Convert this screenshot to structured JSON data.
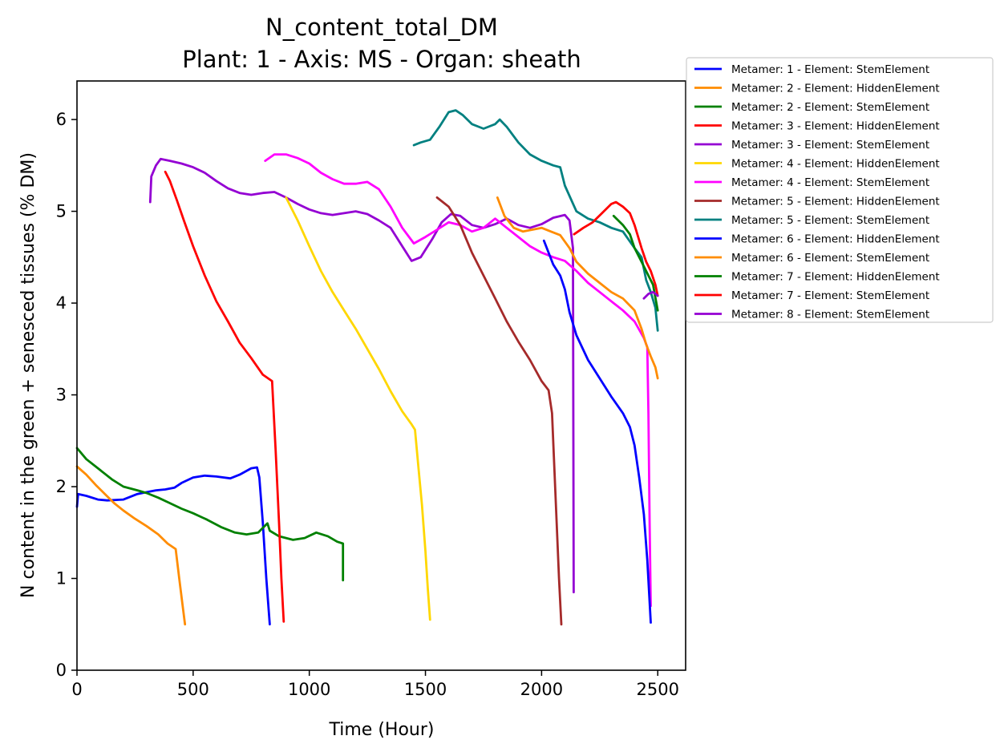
{
  "chart_data": {
    "type": "line",
    "title": "N_content_total_DM",
    "subtitle": "Plant: 1 - Axis: MS - Organ: sheath",
    "xlabel": "Time (Hour)",
    "ylabel": "N content in the green + senesced tissues (% DM)",
    "xlim": [
      0,
      2620
    ],
    "ylim": [
      0,
      6.42
    ],
    "xticks": [
      0,
      500,
      1000,
      1500,
      2000,
      2500
    ],
    "yticks": [
      0,
      1,
      2,
      3,
      4,
      5,
      6
    ],
    "grid": false,
    "legend_position": "outside-top-right",
    "series": [
      {
        "name": "Metamer: 1 - Element: StemElement",
        "color": "#0000ff",
        "points": [
          [
            0,
            1.78
          ],
          [
            5,
            1.92
          ],
          [
            40,
            1.9
          ],
          [
            90,
            1.86
          ],
          [
            130,
            1.85
          ],
          [
            200,
            1.86
          ],
          [
            260,
            1.92
          ],
          [
            300,
            1.94
          ],
          [
            340,
            1.96
          ],
          [
            380,
            1.97
          ],
          [
            420,
            1.99
          ],
          [
            450,
            2.04
          ],
          [
            500,
            2.1
          ],
          [
            550,
            2.12
          ],
          [
            600,
            2.11
          ],
          [
            660,
            2.09
          ],
          [
            700,
            2.13
          ],
          [
            750,
            2.2
          ],
          [
            775,
            2.21
          ],
          [
            785,
            2.1
          ],
          [
            800,
            1.6
          ],
          [
            815,
            1.0
          ],
          [
            830,
            0.5
          ]
        ]
      },
      {
        "name": "Metamer: 2 - Element: HiddenElement",
        "color": "#ff8c00",
        "points": [
          [
            0,
            2.22
          ],
          [
            40,
            2.13
          ],
          [
            80,
            2.02
          ],
          [
            120,
            1.92
          ],
          [
            160,
            1.82
          ],
          [
            200,
            1.74
          ],
          [
            250,
            1.65
          ],
          [
            300,
            1.57
          ],
          [
            350,
            1.48
          ],
          [
            390,
            1.38
          ],
          [
            425,
            1.32
          ],
          [
            440,
            1.0
          ],
          [
            455,
            0.7
          ],
          [
            465,
            0.5
          ]
        ]
      },
      {
        "name": "Metamer: 2 - Element: StemElement",
        "color": "#008000",
        "points": [
          [
            0,
            2.42
          ],
          [
            40,
            2.3
          ],
          [
            100,
            2.18
          ],
          [
            150,
            2.08
          ],
          [
            200,
            2.0
          ],
          [
            260,
            1.96
          ],
          [
            300,
            1.93
          ],
          [
            350,
            1.88
          ],
          [
            400,
            1.82
          ],
          [
            450,
            1.76
          ],
          [
            500,
            1.71
          ],
          [
            560,
            1.64
          ],
          [
            620,
            1.56
          ],
          [
            680,
            1.5
          ],
          [
            730,
            1.48
          ],
          [
            780,
            1.5
          ],
          [
            820,
            1.6
          ],
          [
            830,
            1.52
          ],
          [
            870,
            1.46
          ],
          [
            930,
            1.42
          ],
          [
            980,
            1.44
          ],
          [
            1030,
            1.5
          ],
          [
            1080,
            1.46
          ],
          [
            1120,
            1.4
          ],
          [
            1145,
            1.38
          ],
          [
            1145,
            0.98
          ]
        ]
      },
      {
        "name": "Metamer: 3 - Element: HiddenElement",
        "color": "#ff0000",
        "points": [
          [
            380,
            5.43
          ],
          [
            400,
            5.33
          ],
          [
            430,
            5.12
          ],
          [
            460,
            4.9
          ],
          [
            500,
            4.62
          ],
          [
            550,
            4.3
          ],
          [
            600,
            4.02
          ],
          [
            650,
            3.8
          ],
          [
            700,
            3.57
          ],
          [
            750,
            3.4
          ],
          [
            800,
            3.22
          ],
          [
            840,
            3.15
          ],
          [
            855,
            2.4
          ],
          [
            870,
            1.6
          ],
          [
            880,
            1.0
          ],
          [
            890,
            0.53
          ]
        ]
      },
      {
        "name": "Metamer: 3 - Element: StemElement",
        "color": "#9400d3",
        "points": [
          [
            315,
            5.1
          ],
          [
            320,
            5.38
          ],
          [
            340,
            5.5
          ],
          [
            360,
            5.57
          ],
          [
            400,
            5.55
          ],
          [
            450,
            5.52
          ],
          [
            500,
            5.48
          ],
          [
            550,
            5.42
          ],
          [
            600,
            5.33
          ],
          [
            650,
            5.25
          ],
          [
            700,
            5.2
          ],
          [
            750,
            5.18
          ],
          [
            800,
            5.2
          ],
          [
            850,
            5.21
          ],
          [
            900,
            5.15
          ],
          [
            950,
            5.08
          ],
          [
            1000,
            5.02
          ],
          [
            1050,
            4.98
          ],
          [
            1100,
            4.96
          ],
          [
            1150,
            4.98
          ],
          [
            1200,
            5.0
          ],
          [
            1250,
            4.97
          ],
          [
            1300,
            4.9
          ],
          [
            1350,
            4.82
          ],
          [
            1400,
            4.62
          ],
          [
            1440,
            4.46
          ],
          [
            1480,
            4.5
          ],
          [
            1530,
            4.7
          ],
          [
            1570,
            4.88
          ],
          [
            1610,
            4.97
          ],
          [
            1650,
            4.95
          ],
          [
            1700,
            4.85
          ],
          [
            1750,
            4.82
          ],
          [
            1800,
            4.86
          ],
          [
            1850,
            4.92
          ],
          [
            1900,
            4.85
          ],
          [
            1950,
            4.82
          ],
          [
            2000,
            4.86
          ],
          [
            2050,
            4.93
          ],
          [
            2100,
            4.96
          ],
          [
            2120,
            4.9
          ],
          [
            2135,
            4.6
          ],
          [
            2138,
            0.85
          ]
        ]
      },
      {
        "name": "Metamer: 4 - Element: HiddenElement",
        "color": "#ffd700",
        "points": [
          [
            900,
            5.15
          ],
          [
            950,
            4.9
          ],
          [
            1000,
            4.62
          ],
          [
            1050,
            4.35
          ],
          [
            1100,
            4.12
          ],
          [
            1150,
            3.92
          ],
          [
            1200,
            3.72
          ],
          [
            1250,
            3.5
          ],
          [
            1300,
            3.28
          ],
          [
            1350,
            3.04
          ],
          [
            1400,
            2.82
          ],
          [
            1440,
            2.68
          ],
          [
            1455,
            2.62
          ],
          [
            1470,
            2.2
          ],
          [
            1485,
            1.8
          ],
          [
            1500,
            1.3
          ],
          [
            1510,
            0.9
          ],
          [
            1520,
            0.55
          ]
        ]
      },
      {
        "name": "Metamer: 4 - Element: StemElement",
        "color": "#ff00ff",
        "points": [
          [
            810,
            5.55
          ],
          [
            850,
            5.62
          ],
          [
            900,
            5.62
          ],
          [
            950,
            5.58
          ],
          [
            1000,
            5.52
          ],
          [
            1050,
            5.42
          ],
          [
            1100,
            5.35
          ],
          [
            1150,
            5.3
          ],
          [
            1200,
            5.3
          ],
          [
            1250,
            5.32
          ],
          [
            1300,
            5.24
          ],
          [
            1350,
            5.05
          ],
          [
            1400,
            4.82
          ],
          [
            1450,
            4.65
          ],
          [
            1500,
            4.72
          ],
          [
            1550,
            4.8
          ],
          [
            1600,
            4.88
          ],
          [
            1650,
            4.85
          ],
          [
            1700,
            4.78
          ],
          [
            1750,
            4.82
          ],
          [
            1800,
            4.92
          ],
          [
            1850,
            4.82
          ],
          [
            1900,
            4.72
          ],
          [
            1950,
            4.62
          ],
          [
            2000,
            4.55
          ],
          [
            2050,
            4.5
          ],
          [
            2100,
            4.46
          ],
          [
            2150,
            4.35
          ],
          [
            2200,
            4.22
          ],
          [
            2250,
            4.12
          ],
          [
            2300,
            4.02
          ],
          [
            2350,
            3.92
          ],
          [
            2400,
            3.8
          ],
          [
            2440,
            3.62
          ],
          [
            2455,
            3.52
          ],
          [
            2460,
            2.8
          ],
          [
            2465,
            1.6
          ],
          [
            2470,
            0.7
          ]
        ]
      },
      {
        "name": "Metamer: 5 - Element: HiddenElement",
        "color": "#a52a2a",
        "points": [
          [
            1550,
            5.15
          ],
          [
            1600,
            5.05
          ],
          [
            1650,
            4.85
          ],
          [
            1700,
            4.55
          ],
          [
            1750,
            4.3
          ],
          [
            1800,
            4.05
          ],
          [
            1850,
            3.8
          ],
          [
            1900,
            3.58
          ],
          [
            1950,
            3.38
          ],
          [
            2000,
            3.15
          ],
          [
            2030,
            3.05
          ],
          [
            2045,
            2.8
          ],
          [
            2055,
            2.2
          ],
          [
            2065,
            1.6
          ],
          [
            2075,
            1.0
          ],
          [
            2085,
            0.5
          ]
        ]
      },
      {
        "name": "Metamer: 5 - Element: StemElement",
        "color": "#008080",
        "points": [
          [
            1450,
            5.72
          ],
          [
            1480,
            5.75
          ],
          [
            1520,
            5.78
          ],
          [
            1560,
            5.92
          ],
          [
            1600,
            6.08
          ],
          [
            1630,
            6.1
          ],
          [
            1660,
            6.05
          ],
          [
            1700,
            5.95
          ],
          [
            1750,
            5.9
          ],
          [
            1800,
            5.95
          ],
          [
            1820,
            6.0
          ],
          [
            1850,
            5.92
          ],
          [
            1900,
            5.75
          ],
          [
            1950,
            5.62
          ],
          [
            2000,
            5.55
          ],
          [
            2050,
            5.5
          ],
          [
            2080,
            5.48
          ],
          [
            2100,
            5.28
          ],
          [
            2150,
            5.0
          ],
          [
            2200,
            4.92
          ],
          [
            2250,
            4.88
          ],
          [
            2300,
            4.82
          ],
          [
            2350,
            4.78
          ],
          [
            2400,
            4.6
          ],
          [
            2430,
            4.5
          ],
          [
            2450,
            4.25
          ],
          [
            2470,
            4.12
          ],
          [
            2490,
            3.95
          ],
          [
            2500,
            3.7
          ]
        ]
      },
      {
        "name": "Metamer: 6 - Element: HiddenElement",
        "color": "#0000ff",
        "points": [
          [
            2010,
            4.68
          ],
          [
            2050,
            4.42
          ],
          [
            2080,
            4.3
          ],
          [
            2100,
            4.15
          ],
          [
            2120,
            3.9
          ],
          [
            2150,
            3.65
          ],
          [
            2200,
            3.38
          ],
          [
            2250,
            3.18
          ],
          [
            2300,
            2.98
          ],
          [
            2350,
            2.8
          ],
          [
            2380,
            2.65
          ],
          [
            2400,
            2.45
          ],
          [
            2420,
            2.1
          ],
          [
            2440,
            1.7
          ],
          [
            2455,
            1.2
          ],
          [
            2470,
            0.52
          ]
        ]
      },
      {
        "name": "Metamer: 6 - Element: StemElement",
        "color": "#ff8c00",
        "points": [
          [
            1810,
            5.15
          ],
          [
            1840,
            4.95
          ],
          [
            1880,
            4.82
          ],
          [
            1920,
            4.78
          ],
          [
            1960,
            4.8
          ],
          [
            2000,
            4.82
          ],
          [
            2040,
            4.78
          ],
          [
            2080,
            4.74
          ],
          [
            2120,
            4.6
          ],
          [
            2150,
            4.45
          ],
          [
            2200,
            4.32
          ],
          [
            2250,
            4.22
          ],
          [
            2300,
            4.12
          ],
          [
            2350,
            4.05
          ],
          [
            2400,
            3.92
          ],
          [
            2430,
            3.72
          ],
          [
            2450,
            3.55
          ],
          [
            2470,
            3.42
          ],
          [
            2490,
            3.3
          ],
          [
            2500,
            3.18
          ]
        ]
      },
      {
        "name": "Metamer: 7 - Element: HiddenElement",
        "color": "#008000",
        "points": [
          [
            2310,
            4.95
          ],
          [
            2350,
            4.85
          ],
          [
            2380,
            4.75
          ],
          [
            2400,
            4.6
          ],
          [
            2430,
            4.45
          ],
          [
            2460,
            4.3
          ],
          [
            2480,
            4.2
          ],
          [
            2500,
            3.92
          ]
        ]
      },
      {
        "name": "Metamer: 7 - Element: StemElement",
        "color": "#ff0000",
        "points": [
          [
            2140,
            4.75
          ],
          [
            2180,
            4.82
          ],
          [
            2220,
            4.88
          ],
          [
            2260,
            4.98
          ],
          [
            2300,
            5.08
          ],
          [
            2320,
            5.1
          ],
          [
            2350,
            5.05
          ],
          [
            2380,
            4.98
          ],
          [
            2400,
            4.85
          ],
          [
            2430,
            4.6
          ],
          [
            2450,
            4.45
          ],
          [
            2470,
            4.35
          ],
          [
            2490,
            4.2
          ],
          [
            2500,
            4.08
          ]
        ]
      },
      {
        "name": "Metamer: 8 - Element: StemElement",
        "color": "#9400d3",
        "points": [
          [
            2440,
            4.05
          ],
          [
            2460,
            4.1
          ],
          [
            2480,
            4.12
          ],
          [
            2500,
            4.08
          ]
        ]
      }
    ]
  }
}
